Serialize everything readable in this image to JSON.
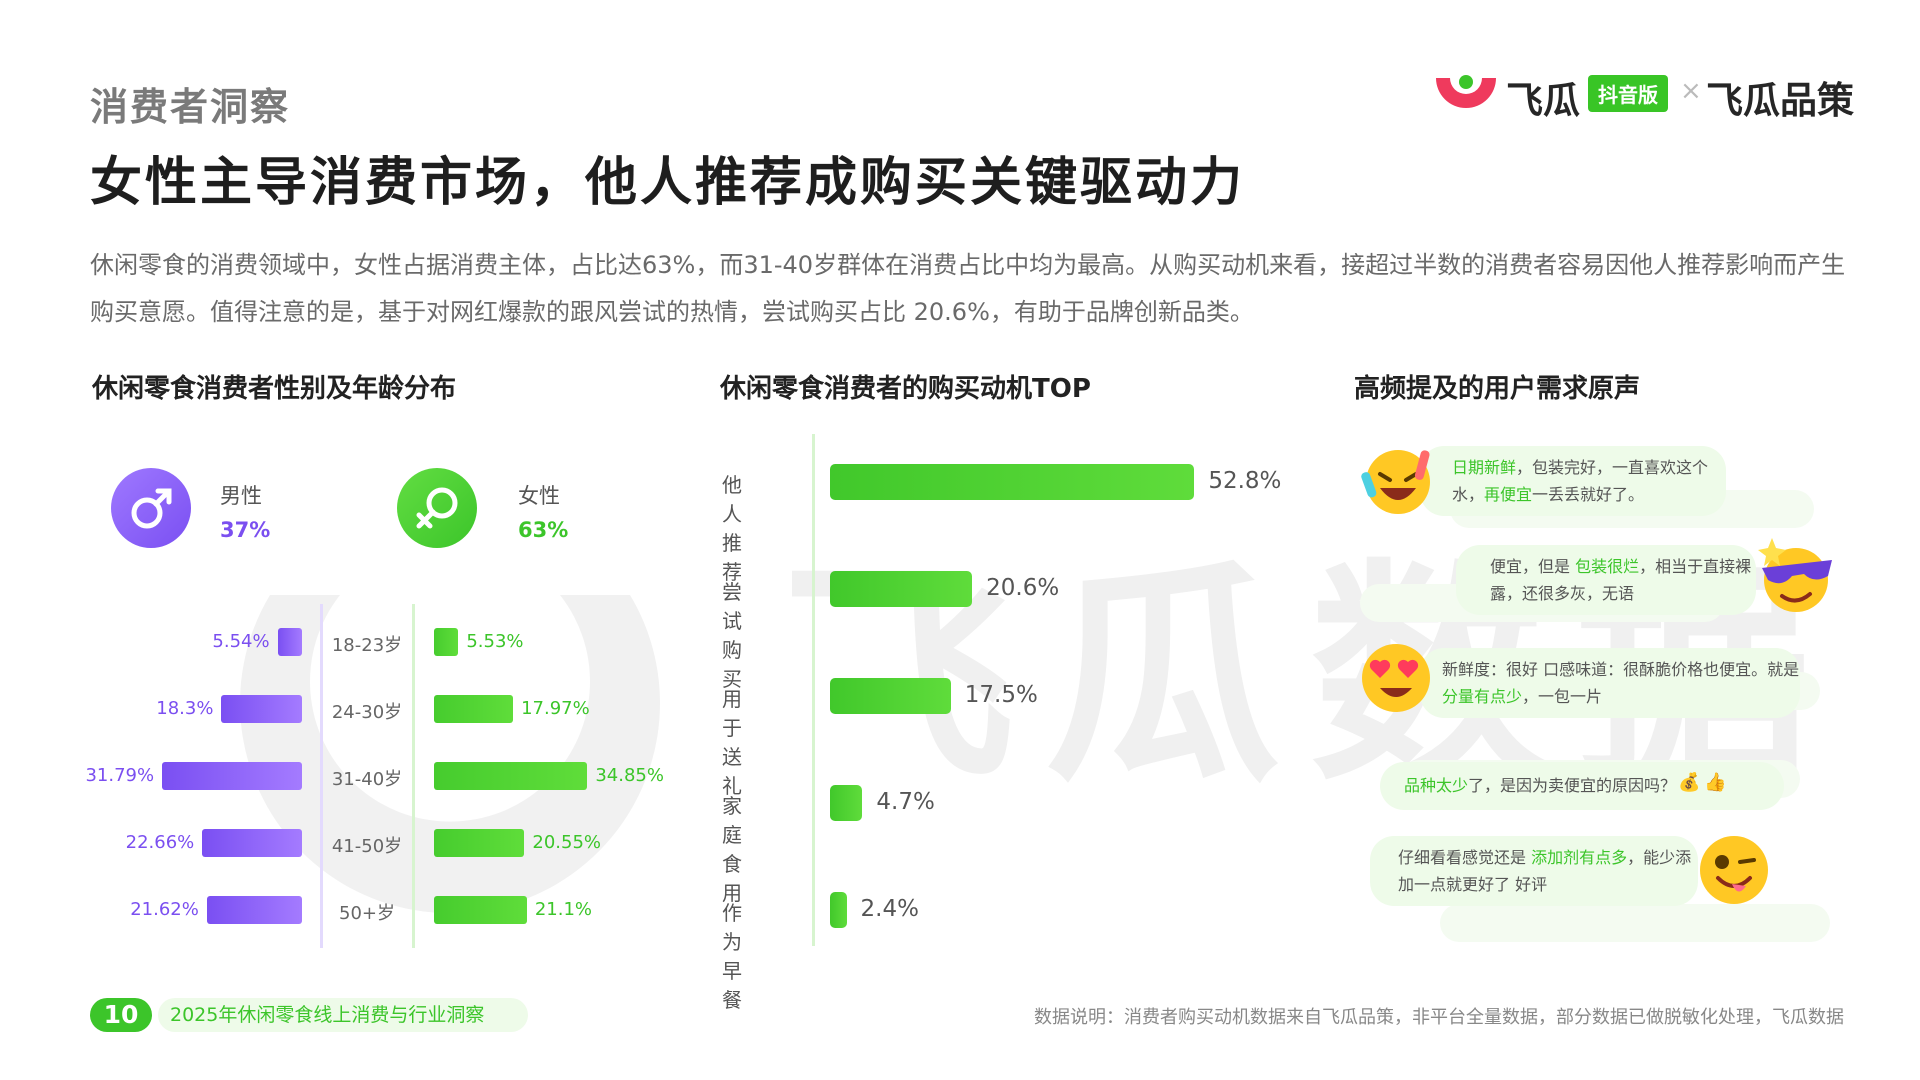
{
  "header": {
    "section_label": "消费者洞察",
    "title": "女性主导消费市场，他人推荐成购买关键驱动力",
    "intro": "休闲零食的消费领域中，女性占据消费主体，占比达63%，而31-40岁群体在消费占比中均为最高。从购买动机来看，接超过半数的消费者容易因他人推荐影响而产生购买意愿。值得注意的是，基于对网红爆款的跟风尝试的热情，尝试购买占比 20.6%，有助于品牌创新品类。"
  },
  "logo": {
    "brand1": "飞瓜",
    "badge": "抖音版",
    "separator": "×",
    "brand2": "飞瓜品策"
  },
  "watermark": "飞瓜数据",
  "colors": {
    "green": "#3cc52a",
    "purple": "#7b4ff0",
    "title": "#1e1e1e"
  },
  "chart_data": [
    {
      "type": "bar",
      "title": "休闲零食消费者性别及年龄分布",
      "gender": [
        {
          "name": "男性",
          "value": "37%",
          "icon": "male-icon"
        },
        {
          "name": "女性",
          "value": "63%",
          "icon": "female-icon"
        }
      ],
      "categories": [
        "18-23岁",
        "24-30岁",
        "31-40岁",
        "41-50岁",
        "50+岁"
      ],
      "series": [
        {
          "name": "男性",
          "values": [
            5.54,
            18.3,
            31.79,
            22.66,
            21.62
          ],
          "labels": [
            "5.54%",
            "18.3%",
            "31.79%",
            "22.66%",
            "21.62%"
          ]
        },
        {
          "name": "女性",
          "values": [
            5.53,
            17.97,
            34.85,
            20.55,
            21.1
          ],
          "labels": [
            "5.53%",
            "17.97%",
            "34.85%",
            "20.55%",
            "21.1%"
          ]
        }
      ]
    },
    {
      "type": "bar",
      "title": "休闲零食消费者的购买动机TOP",
      "categories": [
        "他人推荐",
        "尝试购买",
        "用于送礼",
        "家庭食用",
        "作为早餐"
      ],
      "values": [
        52.8,
        20.6,
        17.5,
        4.7,
        2.4
      ],
      "labels": [
        "52.8%",
        "20.6%",
        "17.5%",
        "4.7%",
        "2.4%"
      ]
    }
  ],
  "quotes": {
    "title": "高频提及的用户需求原声",
    "items": [
      {
        "parts": [
          [
            "日期新鲜",
            true
          ],
          [
            "，包装完好，一直喜欢这个水，",
            false
          ],
          [
            "再便宜",
            true
          ],
          [
            "一丢丢就好了。",
            false
          ]
        ],
        "emoji": "laughing-emoji-icon"
      },
      {
        "parts": [
          [
            "便宜，但是 ",
            false
          ],
          [
            "包装很烂",
            true
          ],
          [
            "，相当于直接裸露，还很多灰，无语",
            false
          ]
        ],
        "emoji": "sunglasses-emoji-icon"
      },
      {
        "parts": [
          [
            "新鲜度：很好 口感味道：很酥脆价格也便宜。就是 ",
            false
          ],
          [
            "分量有点少",
            true
          ],
          [
            "，一包一片",
            false
          ]
        ],
        "emoji": "heart-eyes-emoji-icon"
      },
      {
        "parts": [
          [
            "品种太少",
            true
          ],
          [
            "了，是因为卖便宜的原因吗？",
            false
          ]
        ],
        "emoji": "thumbs-up-icon"
      },
      {
        "parts": [
          [
            "仔细看看感觉还是 ",
            false
          ],
          [
            "添加剂有点多",
            true
          ],
          [
            "，能少添加一点就更好了 好评",
            false
          ]
        ],
        "emoji": "winking-emoji-icon"
      }
    ]
  },
  "footer": {
    "page_number": "10",
    "report_title": "2025年休闲零食线上消费与行业洞察",
    "data_note": "数据说明：消费者购买动机数据来自飞瓜品策，非平台全量数据，部分数据已做脱敏化处理，飞瓜数据"
  }
}
